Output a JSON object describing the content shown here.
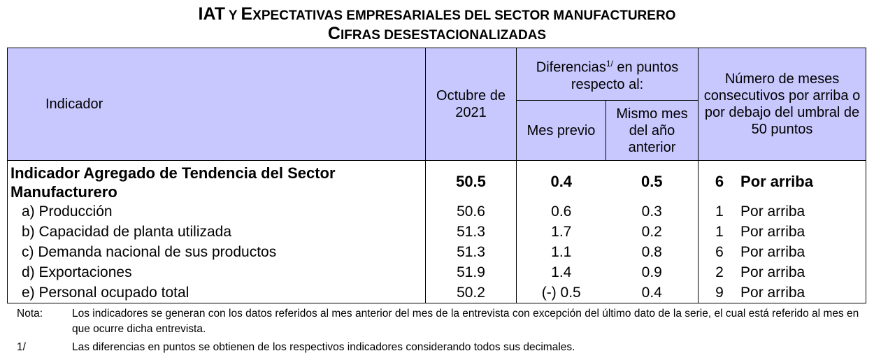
{
  "title": {
    "line1_big1": "IAT",
    "line1_small1": " Y ",
    "line1_big2": "E",
    "line1_small2": "XPECTATIVAS EMPRESARIALES DEL SECTOR MANUFACTURERO",
    "line2_big": "C",
    "line2_small": "IFRAS DESESTACIONALIZADAS"
  },
  "header": {
    "indicator": "Indicador",
    "period": "Octubre de 2021",
    "differences": "Diferencias",
    "differences_sup": "1/",
    "differences_rest": " en puntos respecto al:",
    "prev_month": "Mes previo",
    "same_month": "Mismo mes del año anterior",
    "consecutive": "Número de meses consecutivos por arriba o por debajo del umbral de 50 puntos"
  },
  "rows": [
    {
      "name": "Indicador Agregado de Tendencia del Sector Manufacturero",
      "value": "50.5",
      "prev": "0.4",
      "same": "0.5",
      "months": "6",
      "direction": "Por arriba"
    },
    {
      "name": "a)  Producción",
      "value": "50.6",
      "prev": "0.6",
      "same": "0.3",
      "months": "1",
      "direction": "Por arriba"
    },
    {
      "name": "b)  Capacidad de planta utilizada",
      "value": "51.3",
      "prev": "1.7",
      "same": "0.2",
      "months": "1",
      "direction": "Por arriba"
    },
    {
      "name": "c)  Demanda nacional de sus productos",
      "value": "51.3",
      "prev": "1.1",
      "same": "0.8",
      "months": "6",
      "direction": "Por arriba"
    },
    {
      "name": "d)  Exportaciones",
      "value": "51.9",
      "prev": "1.4",
      "same": "0.9",
      "months": "2",
      "direction": "Por arriba"
    },
    {
      "name": "e)  Personal ocupado total",
      "value": "50.2",
      "prev": "(-) 0.5",
      "same": "0.4",
      "months": "9",
      "direction": "Por arriba"
    }
  ],
  "notes": {
    "nota_label": "Nota:",
    "nota_text": "Los indicadores se generan con los datos referidos al mes anterior del mes de la entrevista con excepción del último dato de la serie, el cual está referido al mes en que ocurre dicha entrevista.",
    "fn_label": "1/",
    "fn_text": "Las diferencias en puntos se obtienen de los respectivos indicadores considerando todos sus decimales."
  }
}
